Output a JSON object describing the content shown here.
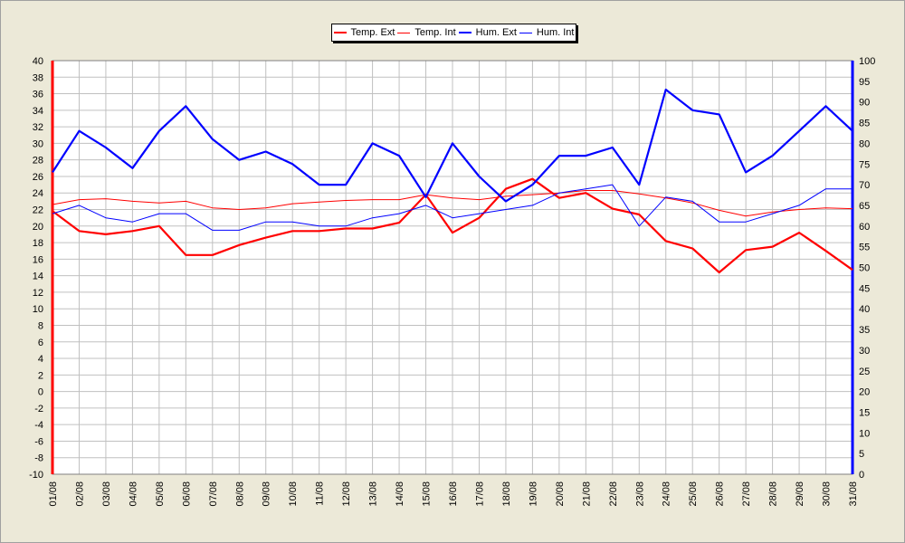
{
  "chart_data": {
    "type": "line",
    "categories": [
      "01/08",
      "02/08",
      "03/08",
      "04/08",
      "05/08",
      "06/08",
      "07/08",
      "08/08",
      "09/08",
      "10/08",
      "11/08",
      "12/08",
      "13/08",
      "14/08",
      "15/08",
      "16/08",
      "17/08",
      "18/08",
      "19/08",
      "20/08",
      "21/08",
      "22/08",
      "23/08",
      "24/08",
      "25/08",
      "26/08",
      "27/08",
      "28/08",
      "29/08",
      "30/08",
      "31/08"
    ],
    "y_left": {
      "min": -10,
      "max": 40,
      "step": 2
    },
    "y_right": {
      "min": 0,
      "max": 100,
      "step": 5
    },
    "grid": true,
    "legend_position": "top-center",
    "series": [
      {
        "name": "Temp. Ext",
        "axis": "left",
        "color": "#ff0000",
        "width": "thick",
        "values": [
          21.8,
          19.4,
          19.0,
          19.4,
          20.0,
          16.5,
          16.5,
          17.7,
          18.6,
          19.4,
          19.4,
          19.7,
          19.7,
          20.4,
          23.8,
          19.2,
          21.0,
          24.5,
          25.7,
          23.4,
          24.0,
          22.1,
          21.4,
          18.2,
          17.3,
          14.4,
          17.1,
          17.5,
          19.2,
          17.0,
          14.7
        ]
      },
      {
        "name": "Temp. Int",
        "axis": "left",
        "color": "#ff0000",
        "width": "thin",
        "values": [
          22.6,
          23.2,
          23.3,
          23.0,
          22.8,
          23.0,
          22.2,
          22.0,
          22.2,
          22.7,
          22.9,
          23.1,
          23.2,
          23.2,
          23.8,
          23.4,
          23.2,
          23.6,
          23.8,
          24.0,
          24.3,
          24.3,
          23.9,
          23.4,
          22.8,
          21.9,
          21.2,
          21.7,
          22.0,
          22.2,
          22.1
        ]
      },
      {
        "name": "Hum. Ext",
        "axis": "right",
        "color": "#0000ff",
        "width": "thick",
        "values": [
          73,
          83,
          79,
          74,
          83,
          89,
          81,
          76,
          78,
          75,
          70,
          70,
          80,
          77,
          67,
          80,
          72,
          66,
          70,
          77,
          77,
          79,
          70,
          93,
          88,
          87,
          73,
          77,
          83,
          89,
          83
        ]
      },
      {
        "name": "Hum. Int",
        "axis": "right",
        "color": "#0000ff",
        "width": "thin",
        "values": [
          63,
          65,
          62,
          61,
          63,
          63,
          59,
          59,
          61,
          61,
          60,
          60,
          62,
          63,
          65,
          62,
          63,
          64,
          65,
          68,
          69,
          70,
          60,
          67,
          66,
          61,
          61,
          63,
          65,
          69,
          69
        ]
      }
    ]
  }
}
